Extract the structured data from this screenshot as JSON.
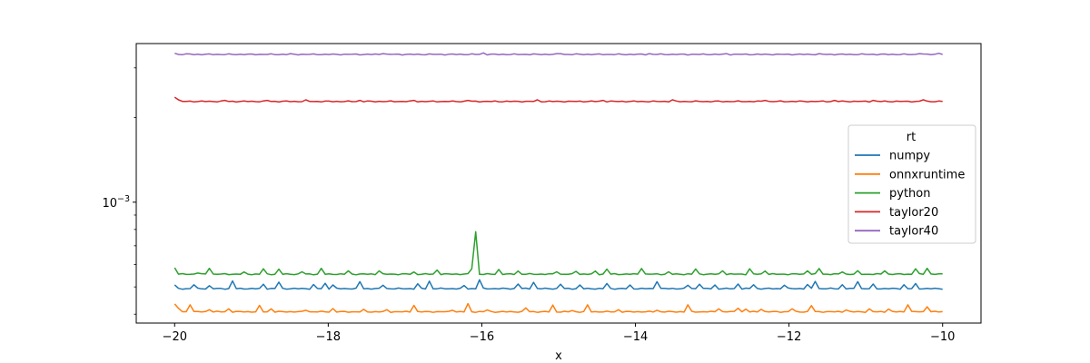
{
  "chart_data": {
    "type": "line",
    "title": "",
    "xlabel": "x",
    "ylabel": "",
    "yscale": "log",
    "xlim": [
      -20.5,
      -9.5
    ],
    "ylim": [
      0.000372,
      0.00366
    ],
    "xticks": [
      -20,
      -18,
      -16,
      -14,
      -12,
      -10
    ],
    "xtick_labels": [
      "−20",
      "−18",
      "−16",
      "−14",
      "−12",
      "−10"
    ],
    "ytick_major": [
      {
        "value": 0.001,
        "base": "10",
        "exponent": "−3"
      }
    ],
    "ytick_minor": [
      0.0004,
      0.0005,
      0.0006,
      0.0007,
      0.0008,
      0.0009,
      0.002,
      0.003
    ],
    "grid": false,
    "legend": {
      "title": "rt",
      "placement": "center-right"
    },
    "x_range": {
      "start": -20,
      "stop": -10,
      "n": 200
    },
    "series": [
      {
        "name": "numpy",
        "color": "#1f77b4",
        "base": 0.000493,
        "first": 0.000508,
        "spikes": [
          [
            -19.75,
            0.000509
          ],
          [
            -19.55,
            0.000505
          ],
          [
            -19.25,
            0.000525
          ],
          [
            -18.85,
            0.000511
          ],
          [
            -18.65,
            0.00052
          ],
          [
            -18.2,
            0.00051
          ],
          [
            -18.05,
            0.000515
          ],
          [
            -17.95,
            0.000508
          ],
          [
            -17.6,
            0.000522
          ],
          [
            -17.3,
            0.000507
          ],
          [
            -16.85,
            0.000513
          ],
          [
            -16.7,
            0.000524
          ],
          [
            -16.25,
            0.000506
          ],
          [
            -16.05,
            0.00053
          ],
          [
            -15.55,
            0.000512
          ],
          [
            -15.35,
            0.000519
          ],
          [
            -14.95,
            0.000511
          ],
          [
            -14.7,
            0.000508
          ],
          [
            -14.35,
            0.000514
          ],
          [
            -14.05,
            0.000508
          ],
          [
            -13.7,
            0.000522
          ],
          [
            -13.3,
            0.000507
          ],
          [
            -13.15,
            0.000511
          ],
          [
            -12.95,
            0.000508
          ],
          [
            -12.65,
            0.000512
          ],
          [
            -12.45,
            0.000509
          ],
          [
            -12.05,
            0.000507
          ],
          [
            -11.75,
            0.00051
          ],
          [
            -11.65,
            0.000523
          ],
          [
            -11.3,
            0.000509
          ],
          [
            -11.1,
            0.000522
          ],
          [
            -10.9,
            0.000512
          ],
          [
            -10.5,
            0.000509
          ],
          [
            -10.35,
            0.000514
          ]
        ]
      },
      {
        "name": "onnxruntime",
        "color": "#ff7f0e",
        "base": 0.000408,
        "first": 0.000435,
        "spikes": [
          [
            -19.95,
            0.00042
          ],
          [
            -19.8,
            0.000432
          ],
          [
            -19.55,
            0.000415
          ],
          [
            -19.3,
            0.000418
          ],
          [
            -18.9,
            0.00043
          ],
          [
            -18.75,
            0.000418
          ],
          [
            -18.3,
            0.000413
          ],
          [
            -17.95,
            0.000419
          ],
          [
            -17.55,
            0.000416
          ],
          [
            -17.25,
            0.000415
          ],
          [
            -16.9,
            0.00043
          ],
          [
            -16.4,
            0.000413
          ],
          [
            -16.2,
            0.000436
          ],
          [
            -15.95,
            0.000414
          ],
          [
            -15.45,
            0.000421
          ],
          [
            -15.1,
            0.000431
          ],
          [
            -14.8,
            0.000412
          ],
          [
            -14.6,
            0.000432
          ],
          [
            -14.2,
            0.000415
          ],
          [
            -13.7,
            0.000413
          ],
          [
            -13.3,
            0.000432
          ],
          [
            -12.9,
            0.000418
          ],
          [
            -12.65,
            0.00042
          ],
          [
            -12.55,
            0.000417
          ],
          [
            -12.35,
            0.000416
          ],
          [
            -11.95,
            0.000418
          ],
          [
            -11.7,
            0.000429
          ],
          [
            -11.25,
            0.000414
          ],
          [
            -10.95,
            0.000418
          ],
          [
            -10.7,
            0.000417
          ],
          [
            -10.45,
            0.000432
          ],
          [
            -10.2,
            0.000425
          ]
        ]
      },
      {
        "name": "python",
        "color": "#2ca02c",
        "base": 0.000555,
        "first": 0.000585,
        "spikes": [
          [
            -19.7,
            0.00056
          ],
          [
            -19.55,
            0.000582
          ],
          [
            -19.1,
            0.000565
          ],
          [
            -18.85,
            0.00058
          ],
          [
            -18.65,
            0.000578
          ],
          [
            -18.35,
            0.000566
          ],
          [
            -18.1,
            0.000582
          ],
          [
            -17.75,
            0.00057
          ],
          [
            -17.35,
            0.00057
          ],
          [
            -16.9,
            0.000565
          ],
          [
            -16.6,
            0.000574
          ],
          [
            -16.15,
            0.00058
          ],
          [
            -16.1,
            0.000785
          ],
          [
            -15.8,
            0.000577
          ],
          [
            -15.55,
            0.000569
          ],
          [
            -15.05,
            0.000566
          ],
          [
            -14.75,
            0.000568
          ],
          [
            -14.5,
            0.000569
          ],
          [
            -14.35,
            0.000578
          ],
          [
            -13.9,
            0.000581
          ],
          [
            -13.55,
            0.000566
          ],
          [
            -13.2,
            0.000579
          ],
          [
            -12.85,
            0.00057
          ],
          [
            -12.5,
            0.00058
          ],
          [
            -12.3,
            0.000569
          ],
          [
            -11.75,
            0.00057
          ],
          [
            -11.6,
            0.000581
          ],
          [
            -11.3,
            0.000565
          ],
          [
            -11.1,
            0.000571
          ],
          [
            -10.75,
            0.00057
          ],
          [
            -10.35,
            0.00058
          ],
          [
            -10.2,
            0.000582
          ]
        ]
      },
      {
        "name": "taylor20",
        "color": "#d62728",
        "base": 0.00228,
        "first": 0.00236,
        "spikes": [
          [
            -19.95,
            0.00231
          ],
          [
            -19.35,
            0.0023
          ],
          [
            -18.8,
            0.0023
          ],
          [
            -18.3,
            0.00231
          ],
          [
            -17.6,
            0.0023
          ],
          [
            -16.9,
            0.0023
          ],
          [
            -16.2,
            0.0023
          ],
          [
            -15.3,
            0.00231
          ],
          [
            -14.4,
            0.0023
          ],
          [
            -13.5,
            0.00231
          ],
          [
            -12.3,
            0.0023
          ],
          [
            -11.4,
            0.0023
          ],
          [
            -10.9,
            0.0023
          ],
          [
            -10.25,
            0.00231
          ]
        ]
      },
      {
        "name": "taylor40",
        "color": "#9467bd",
        "base": 0.00335,
        "first": 0.00338,
        "spikes": [
          [
            -19.8,
            0.00336
          ],
          [
            -18.5,
            0.00337
          ],
          [
            -17.3,
            0.00337
          ],
          [
            -16.0,
            0.00339
          ],
          [
            -15.0,
            0.00337
          ],
          [
            -13.8,
            0.00337
          ],
          [
            -12.8,
            0.00337
          ],
          [
            -11.6,
            0.00337
          ],
          [
            -10.3,
            0.00337
          ],
          [
            -10.05,
            0.00338
          ]
        ]
      }
    ]
  }
}
